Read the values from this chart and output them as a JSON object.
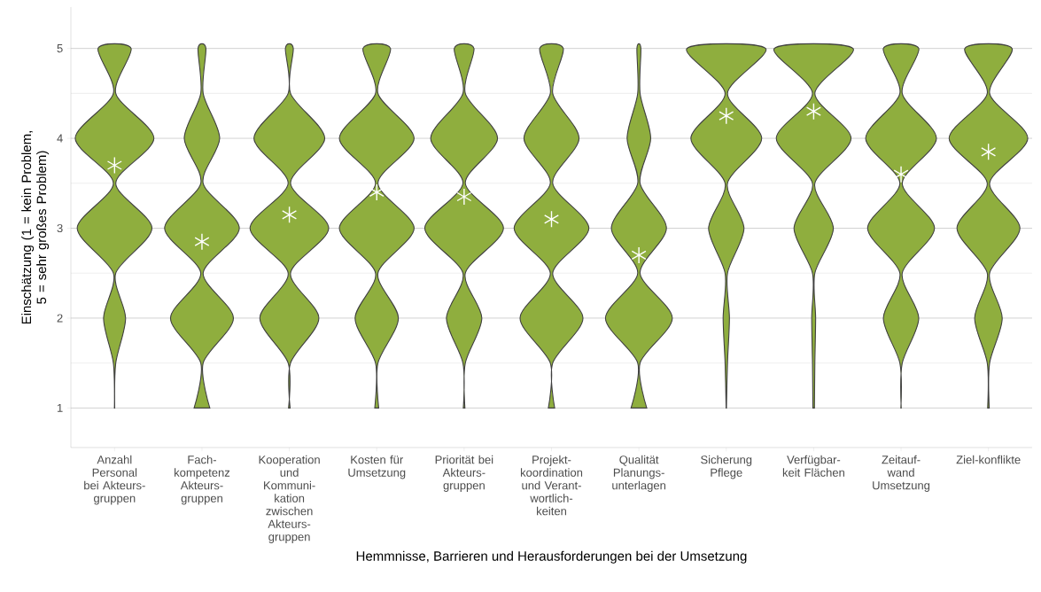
{
  "chart_data": {
    "type": "scatter",
    "xlabel": "Hemmnisse, Barrieren und Herausforderungen bei der Umsetzung",
    "ylabel": "Einschätzung (1 = kein Problem, 5 = sehr großes Problem)",
    "categories": [
      "Anzahl Personal bei Akteurs-gruppen",
      "Fach-kompetenz Akteurs-gruppen",
      "Kooperation und Kommuni-kation zwischen Akteurs-gruppen",
      "Kosten für Umsetzung",
      "Priorität bei Akteurs-gruppen",
      "Projekt-koordination und Verant-wortlich-keiten",
      "Qualität Planungs-unterlagen",
      "Sicherung Pflege",
      "Verfügbar-keit Flächen",
      "Zeitauf-wand Umsetzung",
      "Ziel-konflikte"
    ],
    "ylim": [
      0.56,
      5.46
    ],
    "yticks": [
      1,
      2,
      3,
      4,
      5
    ],
    "grid": "y",
    "series": [
      {
        "marker": "cross",
        "color": "#ffffff",
        "values": [
          3.7,
          2.85,
          3.15,
          3.4,
          3.35,
          3.1,
          2.7,
          4.25,
          4.3,
          3.6,
          3.85
        ]
      }
    ]
  }
}
